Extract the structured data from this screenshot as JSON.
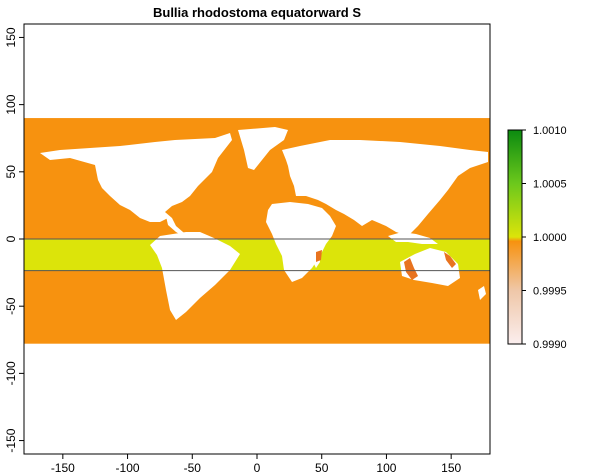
{
  "plot": {
    "title": "Bullia rhodostoma equatorward S"
  },
  "colors": {
    "background": "#ffffff",
    "ocean": "#f7920f",
    "band": "#dce40a",
    "land": "#ffffff",
    "coast_highlight": "#e8731f",
    "frame": "#000000",
    "band_line": "#555555"
  },
  "map": {
    "x_range": [
      -180,
      180
    ],
    "y_range": [
      -160,
      160
    ],
    "ocean_lat_range": [
      -78,
      90
    ],
    "band_lat_range": [
      -23.5,
      0
    ],
    "band_lines": [
      0,
      -23.5
    ]
  },
  "axes": {
    "x_ticks": [
      -150,
      -100,
      -50,
      0,
      50,
      100,
      150
    ],
    "y_ticks": [
      -150,
      -100,
      -50,
      0,
      50,
      100,
      150
    ]
  },
  "legend": {
    "gradient_colors": [
      "#fbeeee",
      "#efc7a8",
      "#f7920f",
      "#dce40a",
      "#6cc81c",
      "#0b8a10"
    ],
    "labels": [
      "1.0010",
      "1.0005",
      "1.0000",
      "0.9995",
      "0.9990"
    ],
    "values": [
      1.001,
      1.0005,
      1.0,
      0.9995,
      0.999
    ]
  }
}
